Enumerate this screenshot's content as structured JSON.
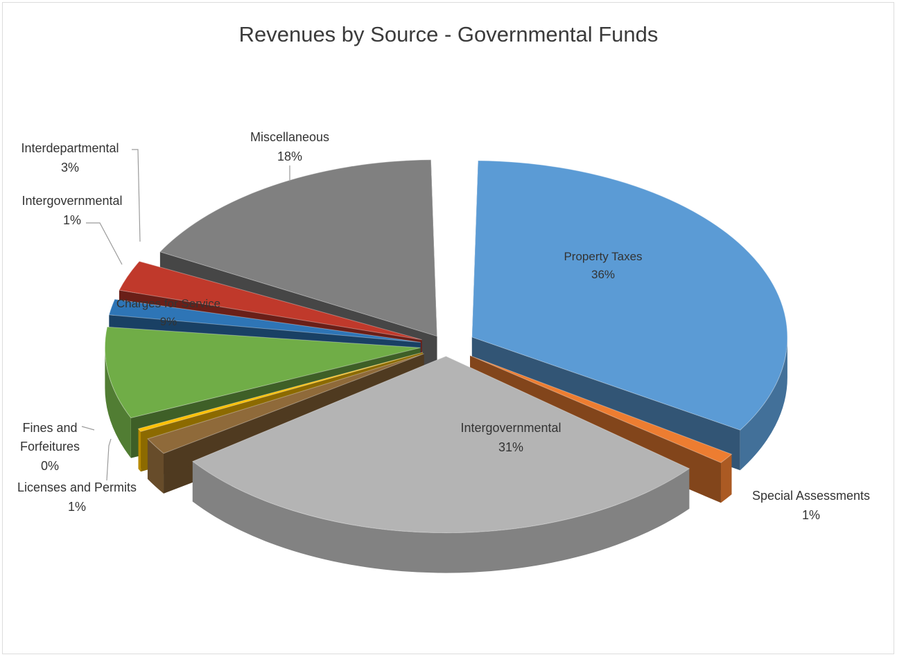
{
  "chart_data": {
    "type": "pie",
    "title": "Revenues by Source - Governmental Funds",
    "slices": [
      {
        "name": "Property Taxes",
        "value": 36,
        "label": "36%",
        "color": "#5b9bd5"
      },
      {
        "name": "Special Assessments",
        "value": 1,
        "label": "1%",
        "color": "#ed7d31"
      },
      {
        "name": "Intergovernmental",
        "value": 31,
        "label": "31%",
        "color": "#b4b4b4"
      },
      {
        "name": "Licenses and Permits",
        "value": 1,
        "label": "1%",
        "color": "#8f6a3a"
      },
      {
        "name": "Fines and Forfeitures",
        "value": 0,
        "label": "0%",
        "color": "#ffc000"
      },
      {
        "name": "Charges for Service",
        "value": 9,
        "label": "9%",
        "color": "#70ad47"
      },
      {
        "name": "Intergovernmental",
        "value": 1,
        "label": "1%",
        "color": "#2e75b6"
      },
      {
        "name": "Interdepartmental",
        "value": 3,
        "label": "3%",
        "color": "#c0392b"
      },
      {
        "name": "Miscellaneous",
        "value": 18,
        "label": "18%",
        "color": "#808080"
      }
    ],
    "exploded": true,
    "three_d": true,
    "legend": "none"
  }
}
